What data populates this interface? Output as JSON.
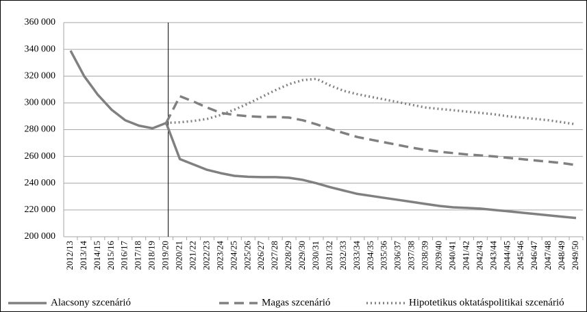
{
  "chart_data": {
    "type": "line",
    "categories": [
      "2012/13",
      "2013/14",
      "2014/15",
      "2015/16",
      "2016/17",
      "2017/18",
      "2018/19",
      "2019/20",
      "2020/21",
      "2021/22",
      "2022/23",
      "2023/24",
      "2024/25",
      "2025/26",
      "2026/27",
      "2027/28",
      "2028/29",
      "2029/30",
      "2030/31",
      "2031/32",
      "2032/33",
      "2033/34",
      "2034/35",
      "2035/36",
      "2036/37",
      "2037/38",
      "2038/39",
      "2039/40",
      "2040/41",
      "2041/42",
      "2042/43",
      "2043/44",
      "2044/45",
      "2045/46",
      "2046/47",
      "2047/48",
      "2048/49",
      "2049/50"
    ],
    "series": [
      {
        "name": "Alacsony szcenárió",
        "color": "#808080",
        "dash": "solid",
        "values": [
          339000,
          320000,
          306000,
          295000,
          287000,
          283000,
          281000,
          285000,
          258000,
          254000,
          250000,
          247500,
          245500,
          244800,
          244500,
          244500,
          244000,
          242500,
          240000,
          237000,
          234500,
          232000,
          230500,
          229000,
          227500,
          226000,
          224500,
          223000,
          222000,
          221500,
          221000,
          220000,
          219000,
          218000,
          217000,
          216000,
          215000,
          214000
        ]
      },
      {
        "name": "Magas szcenárió",
        "color": "#808080",
        "dash": "dashed",
        "values": [
          null,
          null,
          null,
          null,
          null,
          null,
          null,
          285000,
          305000,
          301000,
          296500,
          292500,
          291000,
          290000,
          289500,
          289500,
          289000,
          287000,
          284000,
          280500,
          277500,
          274500,
          272500,
          270500,
          268500,
          266500,
          264800,
          263500,
          262500,
          261500,
          260800,
          260000,
          259000,
          258000,
          257000,
          256000,
          255000,
          253500
        ]
      },
      {
        "name": "Hipotetikus oktatáspolitikai szcenárió",
        "color": "#808080",
        "dash": "dotted",
        "values": [
          null,
          null,
          null,
          null,
          null,
          null,
          null,
          285000,
          285500,
          286500,
          288000,
          291000,
          295000,
          299500,
          304500,
          309500,
          314000,
          317000,
          318000,
          313000,
          309000,
          306500,
          304500,
          302500,
          300500,
          298500,
          296500,
          295500,
          294500,
          293500,
          292500,
          291500,
          290000,
          289000,
          288000,
          287000,
          285500,
          284000
        ]
      }
    ],
    "vline_category": "2019/20",
    "ylim": [
      200000,
      360000
    ],
    "yticks": [
      {
        "value": 200000,
        "label": "200 000"
      },
      {
        "value": 220000,
        "label": "220 000"
      },
      {
        "value": 240000,
        "label": "240 000"
      },
      {
        "value": 260000,
        "label": "260 000"
      },
      {
        "value": 280000,
        "label": "280 000"
      },
      {
        "value": 300000,
        "label": "300 000"
      },
      {
        "value": 320000,
        "label": "320 000"
      },
      {
        "value": 340000,
        "label": "340 000"
      },
      {
        "value": 360000,
        "label": "360 000"
      }
    ],
    "grid": true,
    "legend": "bottom"
  }
}
